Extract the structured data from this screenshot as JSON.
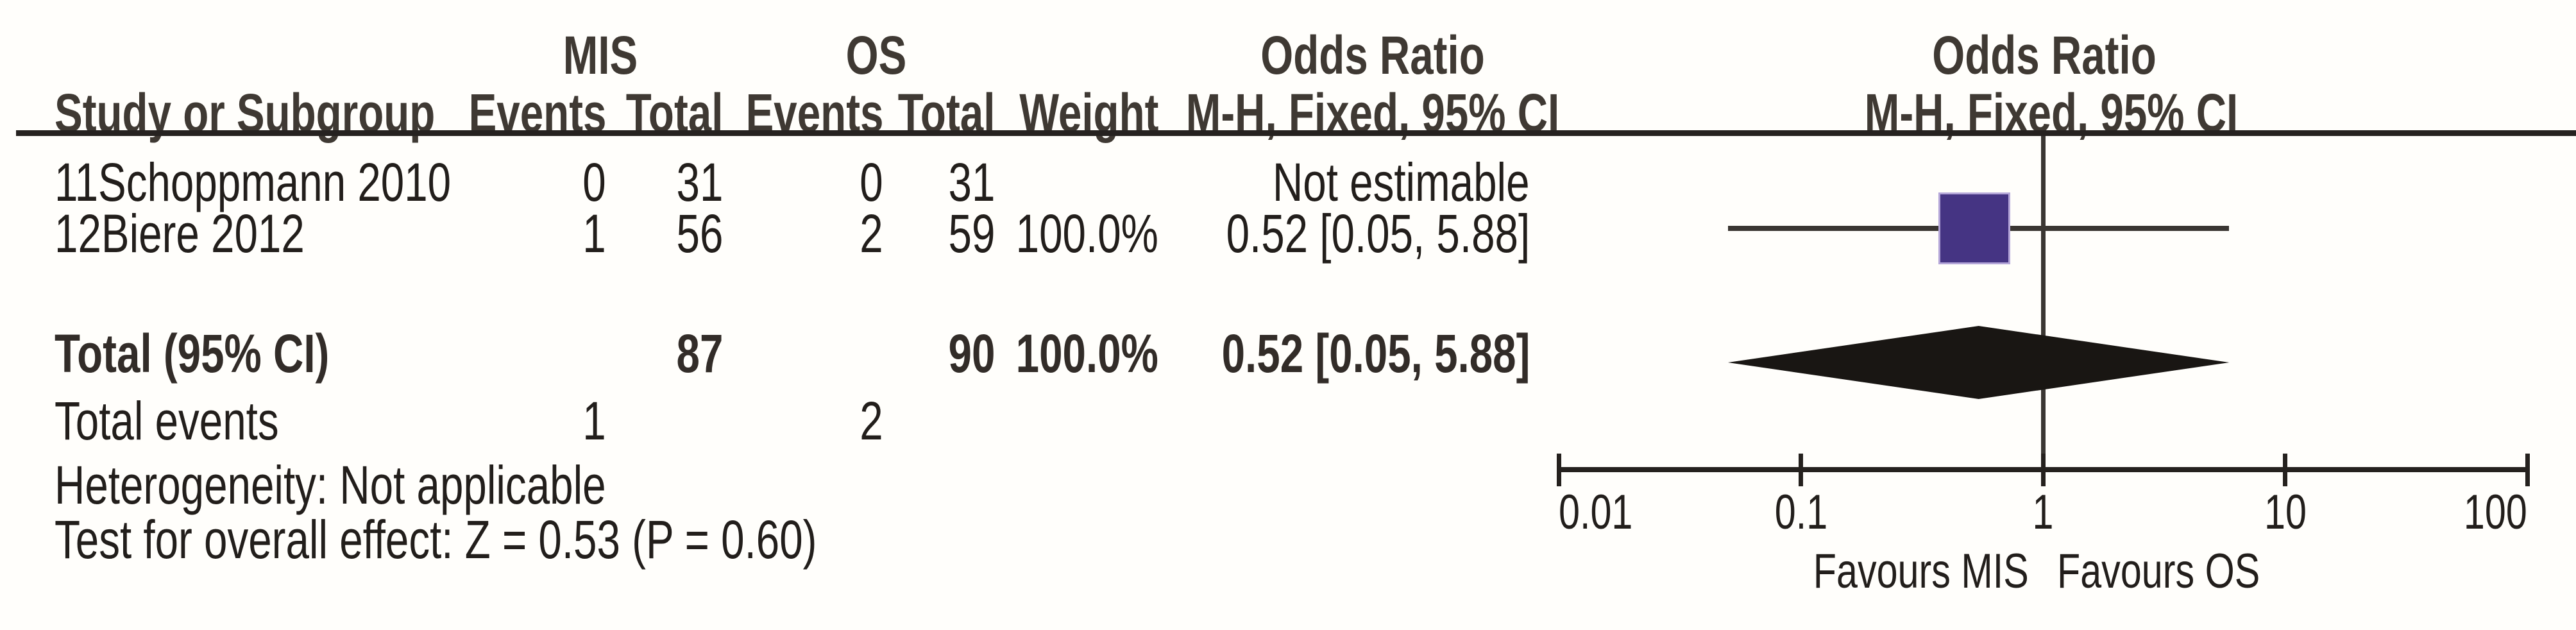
{
  "header": {
    "group_mis": "MIS",
    "group_os": "OS",
    "group_or_table": "Odds Ratio",
    "group_or_plot": "Odds Ratio",
    "col_study": "Study or Subgroup",
    "col_mis_events": "Events",
    "col_mis_total": "Total",
    "col_os_events": "Events",
    "col_os_total": "Total",
    "col_weight": "Weight",
    "col_method_table": "M-H, Fixed, 95% CI",
    "col_method_plot": "M-H, Fixed, 95% CI"
  },
  "chart_data": {
    "type": "forest",
    "x_scale": "log10",
    "x_ticks": [
      "0.01",
      "0.1",
      "1",
      "10",
      "100"
    ],
    "x_range": [
      0.01,
      100
    ],
    "null_line": 1,
    "effect_measure": "Odds Ratio, Mantel-Haenszel, Fixed effect, 95% CI",
    "studies": [
      {
        "name": "11Schoppmann 2010",
        "mis_events": "0",
        "mis_total": "31",
        "os_events": "0",
        "os_total": "31",
        "weight": "",
        "or_text": "Not estimable",
        "or": null,
        "ci_low": null,
        "ci_high": null,
        "weight_pct": 0
      },
      {
        "name": "12Biere 2012",
        "mis_events": "1",
        "mis_total": "56",
        "os_events": "2",
        "os_total": "59",
        "weight": "100.0%",
        "or_text": "0.52 [0.05, 5.88]",
        "or": 0.52,
        "ci_low": 0.05,
        "ci_high": 5.88,
        "weight_pct": 100.0
      }
    ],
    "total": {
      "label": "Total (95% CI)",
      "mis_total": "87",
      "os_total": "90",
      "weight": "100.0%",
      "or_text": "0.52 [0.05, 5.88]",
      "or": 0.52,
      "ci_low": 0.05,
      "ci_high": 5.88
    },
    "favours_left": "Favours MIS",
    "favours_right": "Favours OS"
  },
  "footer": {
    "total_events_label": "Total events",
    "total_events_mis": "1",
    "total_events_os": "2",
    "heterogeneity": "Heterogeneity: Not applicable",
    "overall_effect": "Test for overall effect: Z = 0.53 (P = 0.60)"
  },
  "colors": {
    "marker_square": "#453483",
    "marker_square_edge": "#b4a6d8",
    "diamond": "#191613",
    "line": "#2e2a27",
    "text": "#221e1b"
  }
}
